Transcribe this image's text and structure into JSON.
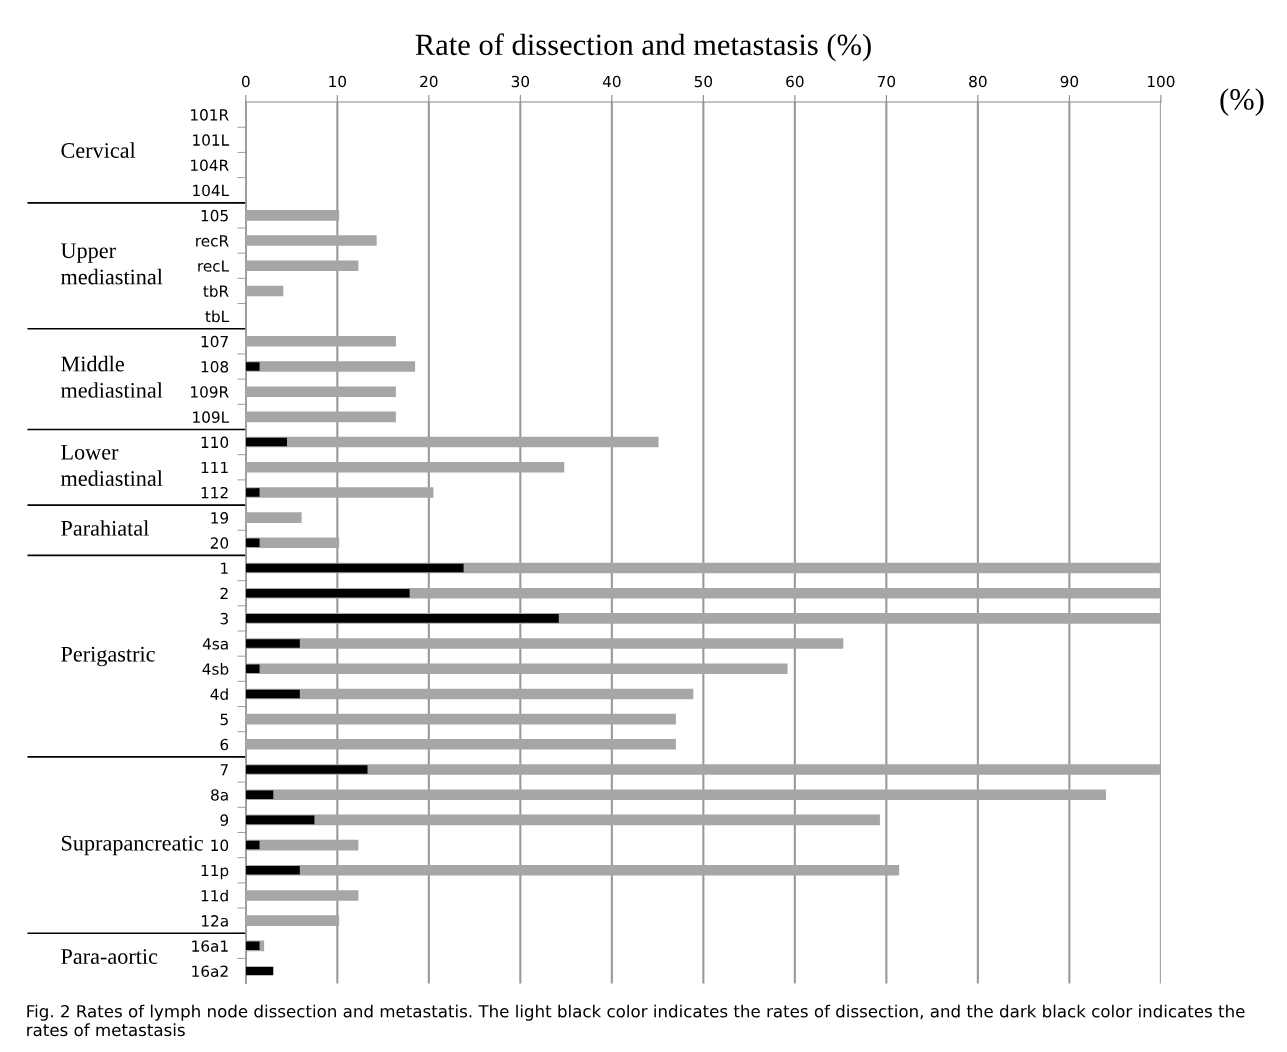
{
  "chart_data": {
    "type": "bar",
    "orientation": "horizontal",
    "title": "Rate of dissection and metastasis (%)",
    "xlabel": "(%)",
    "categories": [
      "101R",
      "101L",
      "104R",
      "104L",
      "105",
      "recR",
      "recL",
      "tbR",
      "tbL",
      "107",
      "108",
      "109R",
      "109L",
      "110",
      "111",
      "112",
      "19",
      "20",
      "1",
      "2",
      "3",
      "4sa",
      "4sb",
      "4d",
      "5",
      "6",
      "7",
      "8a",
      "9",
      "10",
      "11p",
      "11d",
      "12a",
      "16a1",
      "16a2"
    ],
    "series": [
      {
        "color": "#a6a6a6",
        "values": [
          0,
          0,
          0,
          0,
          10.2,
          14.3,
          12.3,
          4.1,
          0,
          16.4,
          18.5,
          16.4,
          16.4,
          45.1,
          34.8,
          20.5,
          6.1,
          10.2,
          100,
          100,
          100,
          65.3,
          59.2,
          48.9,
          47.0,
          47.0,
          100,
          94.0,
          69.3,
          12.3,
          71.4,
          12.3,
          10.2,
          2.0,
          null
        ]
      },
      {
        "color": "#000000",
        "values": [
          0,
          0,
          0,
          0,
          0,
          0,
          0,
          0,
          0,
          0,
          1.5,
          0,
          0,
          4.5,
          0,
          1.5,
          0,
          1.5,
          23.8,
          17.9,
          34.2,
          5.9,
          1.5,
          5.9,
          0,
          0,
          13.3,
          3.0,
          7.5,
          1.5,
          5.9,
          0,
          0,
          1.5,
          3.0
        ]
      }
    ],
    "xlim": [
      0,
      100
    ],
    "xticks": [
      0,
      10,
      20,
      30,
      40,
      50,
      60,
      70,
      80,
      90,
      100
    ],
    "grid": "x",
    "annotations": [
      "Cervical",
      "Upper\nmediastinal",
      "Middle\nmediastinal",
      "Lower\nmediastinal",
      "Parahiatal",
      "Perigastric",
      "Suprapancreatic",
      "Para-aortic",
      "Fig. 2 Rates of lymph node dissection and metastatis. The light black color indicates the rates of dissection, and the dark black color indicates the rates of metastasis"
    ]
  }
}
